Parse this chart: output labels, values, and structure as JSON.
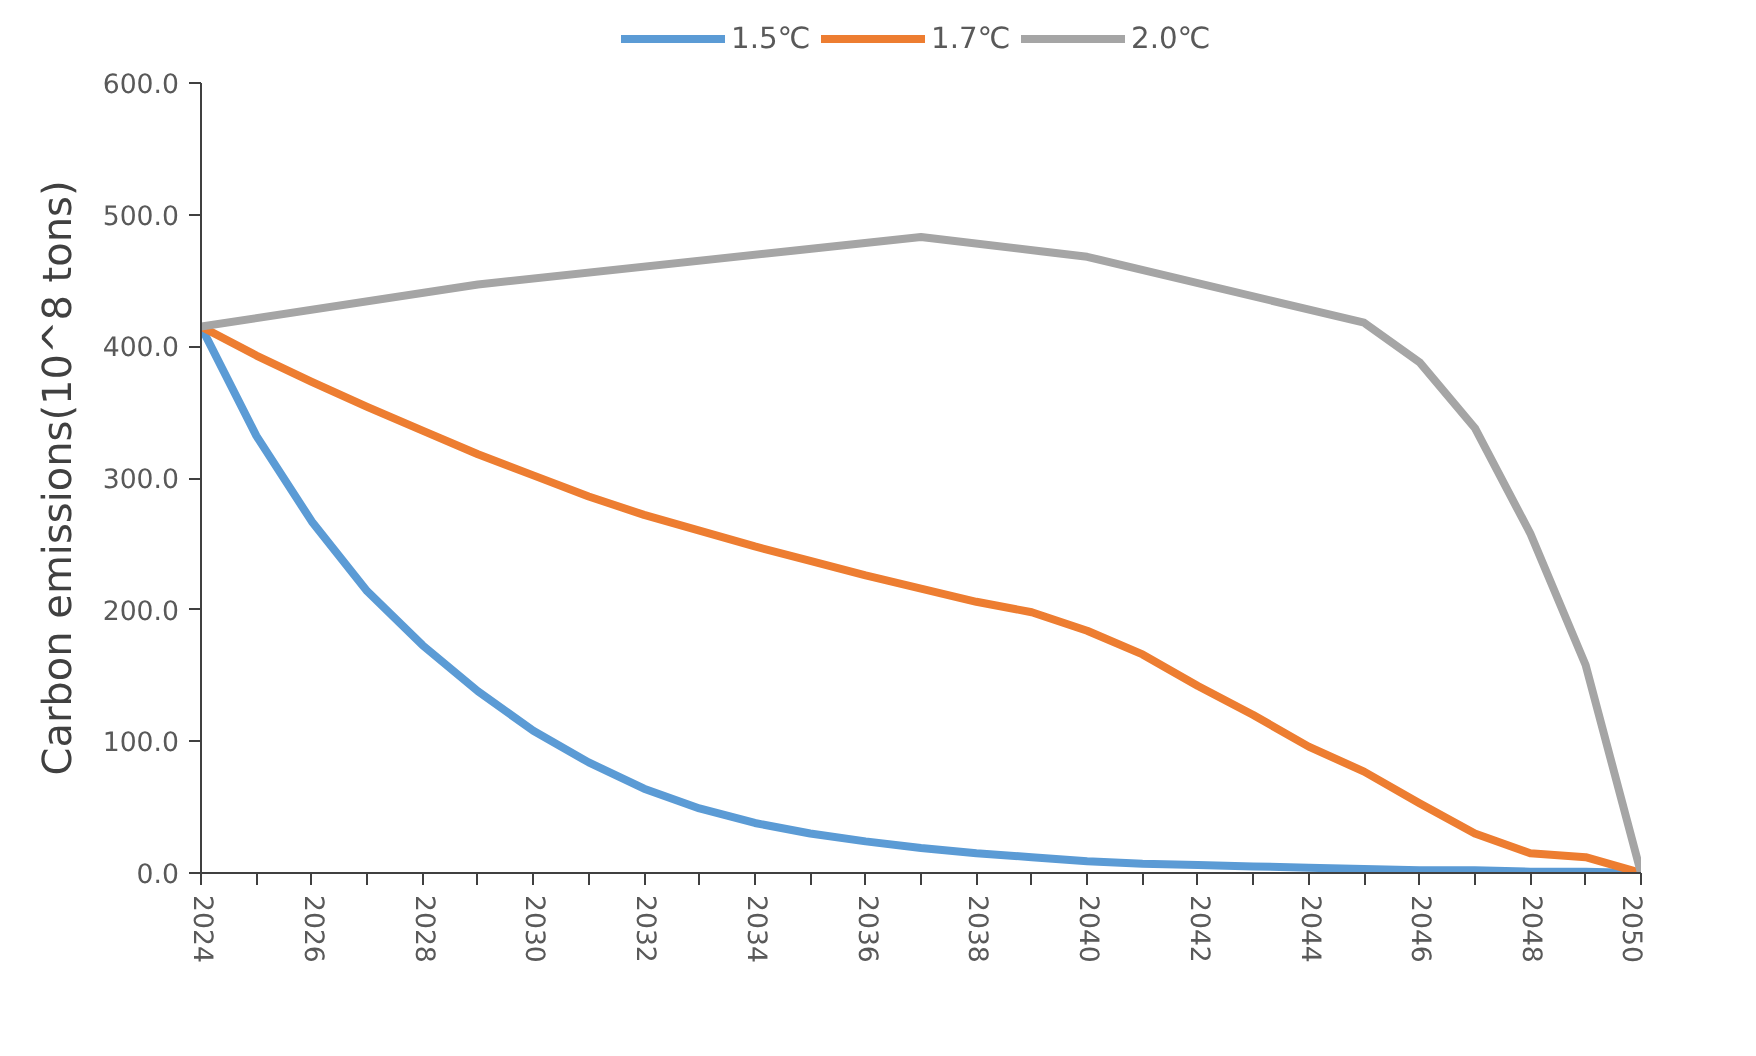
{
  "chart_data": {
    "type": "line",
    "ylabel": "Carbon emissions(10^8 tons)",
    "xlim": [
      2024,
      2050
    ],
    "ylim": [
      0,
      600
    ],
    "xticks": [
      2024,
      {
        "value": 2025,
        "label": null
      },
      2026,
      {
        "value": 2027,
        "label": null
      },
      2028,
      {
        "value": 2029,
        "label": null
      },
      2030,
      {
        "value": 2031,
        "label": null
      },
      2032,
      {
        "value": 2033,
        "label": null
      },
      2034,
      {
        "value": 2035,
        "label": null
      },
      2036,
      {
        "value": 2037,
        "label": null
      },
      2038,
      {
        "value": 2039,
        "label": null
      },
      2040,
      {
        "value": 2041,
        "label": null
      },
      2042,
      {
        "value": 2043,
        "label": null
      },
      2044,
      {
        "value": 2045,
        "label": null
      },
      2046,
      {
        "value": 2047,
        "label": null
      },
      2048,
      {
        "value": 2049,
        "label": null
      },
      2050
    ],
    "yticks": [
      {
        "value": 0,
        "label": "0.0"
      },
      {
        "value": 100,
        "label": "100.0"
      },
      {
        "value": 200,
        "label": "200.0"
      },
      {
        "value": 300,
        "label": "300.0"
      },
      {
        "value": 400,
        "label": "400.0"
      },
      {
        "value": 500,
        "label": "500.0"
      },
      {
        "value": 600,
        "label": "600.0"
      }
    ],
    "grid": false,
    "legend": "top",
    "marker": "none",
    "line_style": "solid",
    "series": [
      {
        "name": "1.5℃",
        "color": "#5b9bd5",
        "x": [
          2024,
          2025,
          2026,
          2027,
          2028,
          2029,
          2030,
          2031,
          2032,
          2033,
          2034,
          2035,
          2036,
          2037,
          2038,
          2039,
          2040,
          2041,
          2042,
          2043,
          2044,
          2045,
          2046,
          2047,
          2048,
          2049,
          2050
        ],
        "values": [
          415,
          332,
          267,
          214,
          173,
          138,
          108,
          84,
          64,
          49,
          38,
          30,
          24,
          19,
          15,
          12,
          9,
          7,
          6,
          5,
          4,
          3,
          2,
          2,
          1,
          1,
          0
        ]
      },
      {
        "name": "1.7℃",
        "color": "#ed7d31",
        "x": [
          2024,
          2025,
          2026,
          2027,
          2028,
          2029,
          2030,
          2031,
          2032,
          2033,
          2034,
          2035,
          2036,
          2037,
          2038,
          2039,
          2040,
          2041,
          2042,
          2043,
          2044,
          2045,
          2046,
          2047,
          2048,
          2049,
          2050
        ],
        "values": [
          415,
          393,
          373,
          354,
          336,
          318,
          302,
          286,
          272,
          260,
          248,
          237,
          226,
          216,
          206,
          198,
          184,
          166,
          142,
          120,
          96,
          77,
          53,
          30,
          15,
          12,
          0
        ]
      },
      {
        "name": "2.0℃",
        "color": "#a5a5a5",
        "x": [
          2024,
          2029,
          2037,
          2040,
          2045,
          2046,
          2047,
          2048,
          2049,
          2050
        ],
        "values": [
          415,
          447,
          483,
          468,
          418,
          388,
          338,
          258,
          158,
          0
        ]
      }
    ]
  }
}
